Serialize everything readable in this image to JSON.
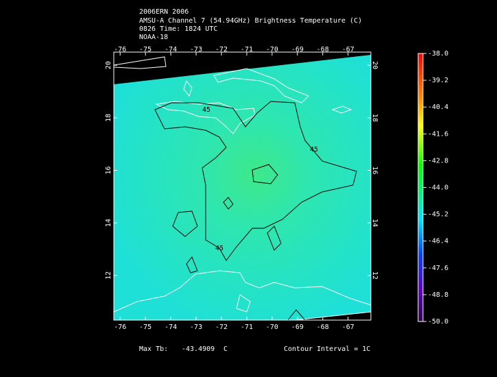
{
  "title_lines": [
    "2006ERN 2006",
    "AMSU-A Channel 7 (54.94GHz) Brightness Temperature (C)",
    "0826 Time: 1824 UTC",
    "NOAA-18"
  ],
  "map": {
    "xlim": [
      -76.25,
      -66.1
    ],
    "ylim": [
      10.3,
      20.5
    ],
    "xticks": [
      -76,
      -75,
      -74,
      -73,
      -72,
      -71,
      -70,
      -69,
      -68,
      -67
    ],
    "yticks": [
      12,
      14,
      16,
      18,
      20
    ],
    "contour_labels": [
      45,
      45,
      45
    ]
  },
  "colorbar": {
    "lim": [
      -50,
      -38
    ],
    "ticks": [
      {
        "value": -38,
        "label": "-38.0"
      },
      {
        "value": -39.2,
        "label": "-39.2"
      },
      {
        "value": -40.4,
        "label": "-40.4"
      },
      {
        "value": -41.6,
        "label": "-41.6"
      },
      {
        "value": -42.8,
        "label": "-42.8"
      },
      {
        "value": -44,
        "label": "-44.0"
      },
      {
        "value": -45.2,
        "label": "-45.2"
      },
      {
        "value": -46.4,
        "label": "-46.4"
      },
      {
        "value": -47.6,
        "label": "-47.6"
      },
      {
        "value": -48.8,
        "label": "-48.8"
      },
      {
        "value": -50,
        "label": "-50.0"
      }
    ]
  },
  "footer": {
    "max_label": "Max Tb:",
    "max_value": -43.4909,
    "max_unit": "C",
    "contour_interval": "Contour Interval = 1C"
  }
}
